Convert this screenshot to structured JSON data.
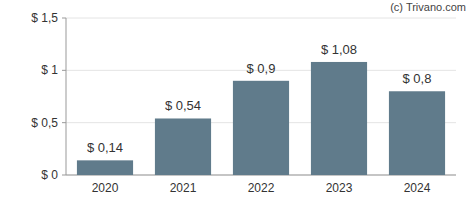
{
  "chart_data": {
    "type": "bar",
    "categories": [
      "2020",
      "2021",
      "2022",
      "2023",
      "2024"
    ],
    "values": [
      0.14,
      0.54,
      0.9,
      1.08,
      0.8
    ],
    "value_labels": [
      "$ 0,14",
      "$ 0,54",
      "$ 0,9",
      "$ 1,08",
      "$ 0,8"
    ],
    "color": "#607b8b",
    "ylim": [
      0,
      1.5
    ],
    "yticks": [
      {
        "value": 0,
        "label": "$ 0"
      },
      {
        "value": 0.5,
        "label": "$ 0,5"
      },
      {
        "value": 1,
        "label": "$ 1"
      },
      {
        "value": 1.5,
        "label": "$ 1,5"
      }
    ],
    "grid": true,
    "data_labels": true,
    "annotations": [
      "(c) Trivano.com"
    ]
  }
}
